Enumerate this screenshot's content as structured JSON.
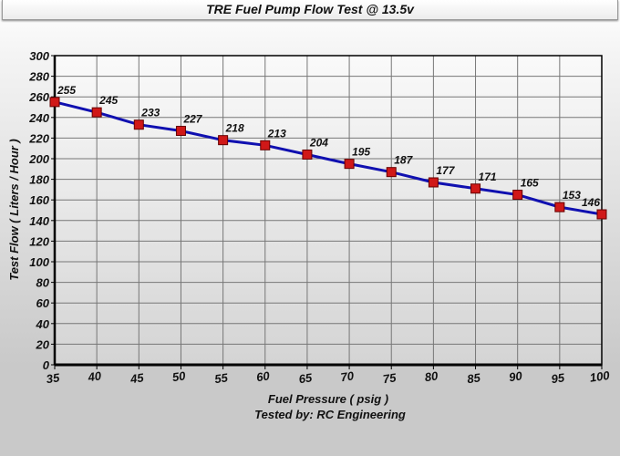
{
  "chart_data": {
    "type": "line",
    "title": "TRE Fuel Pump Flow Test @ 13.5v",
    "xlabel": "Fuel Pressure ( psig )",
    "subtitle": "Tested by: RC Engineering",
    "ylabel": "Test Flow ( Liters / Hour )",
    "x": [
      35,
      40,
      45,
      50,
      55,
      60,
      65,
      70,
      75,
      80,
      85,
      90,
      95,
      100
    ],
    "series": [
      {
        "values": [
          255,
          245,
          233,
          227,
          218,
          213,
          204,
          195,
          187,
          177,
          171,
          165,
          153,
          146
        ],
        "line_color": "#1010b0",
        "marker_color": "#d01818"
      }
    ],
    "xlim": [
      35,
      100
    ],
    "ylim": [
      0,
      300
    ],
    "xticks": [
      35,
      40,
      45,
      50,
      55,
      60,
      65,
      70,
      75,
      80,
      85,
      90,
      95,
      100
    ],
    "yticks": [
      0,
      20,
      40,
      60,
      80,
      100,
      120,
      140,
      160,
      180,
      200,
      220,
      240,
      260,
      280,
      300
    ],
    "grid": true,
    "data_labels": true
  }
}
